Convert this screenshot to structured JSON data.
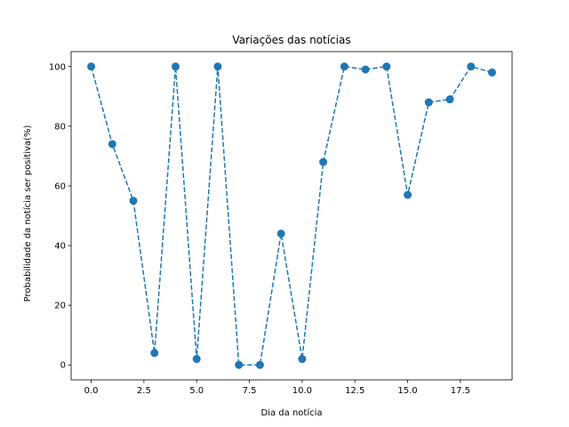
{
  "chart_data": {
    "type": "line",
    "title": "Variações das notícias",
    "xlabel": "Dia da notícia",
    "ylabel": "Probabilidade da notícia ser positiva(%)",
    "xlim": [
      -0.95,
      19.95
    ],
    "ylim": [
      -5,
      105
    ],
    "xticks": [
      0,
      2.5,
      5,
      7.5,
      10,
      12.5,
      15,
      17.5
    ],
    "xtick_labels": [
      "0.0",
      "2.5",
      "5.0",
      "7.5",
      "10.0",
      "12.5",
      "15.0",
      "17.5"
    ],
    "yticks": [
      0,
      20,
      40,
      60,
      80,
      100
    ],
    "ytick_labels": [
      "0",
      "20",
      "40",
      "60",
      "80",
      "100"
    ],
    "grid": false,
    "series": [
      {
        "color": "#1f77b4",
        "line_style": "dashed",
        "marker": "circle",
        "x": [
          0,
          1,
          2,
          3,
          4,
          5,
          6,
          7,
          8,
          9,
          10,
          11,
          12,
          13,
          14,
          15,
          16,
          17,
          18,
          19
        ],
        "values": [
          100,
          74,
          55,
          4,
          100,
          2,
          100,
          0,
          0,
          44,
          2,
          68,
          100,
          99,
          100,
          57,
          88,
          89,
          100,
          98
        ]
      }
    ]
  }
}
